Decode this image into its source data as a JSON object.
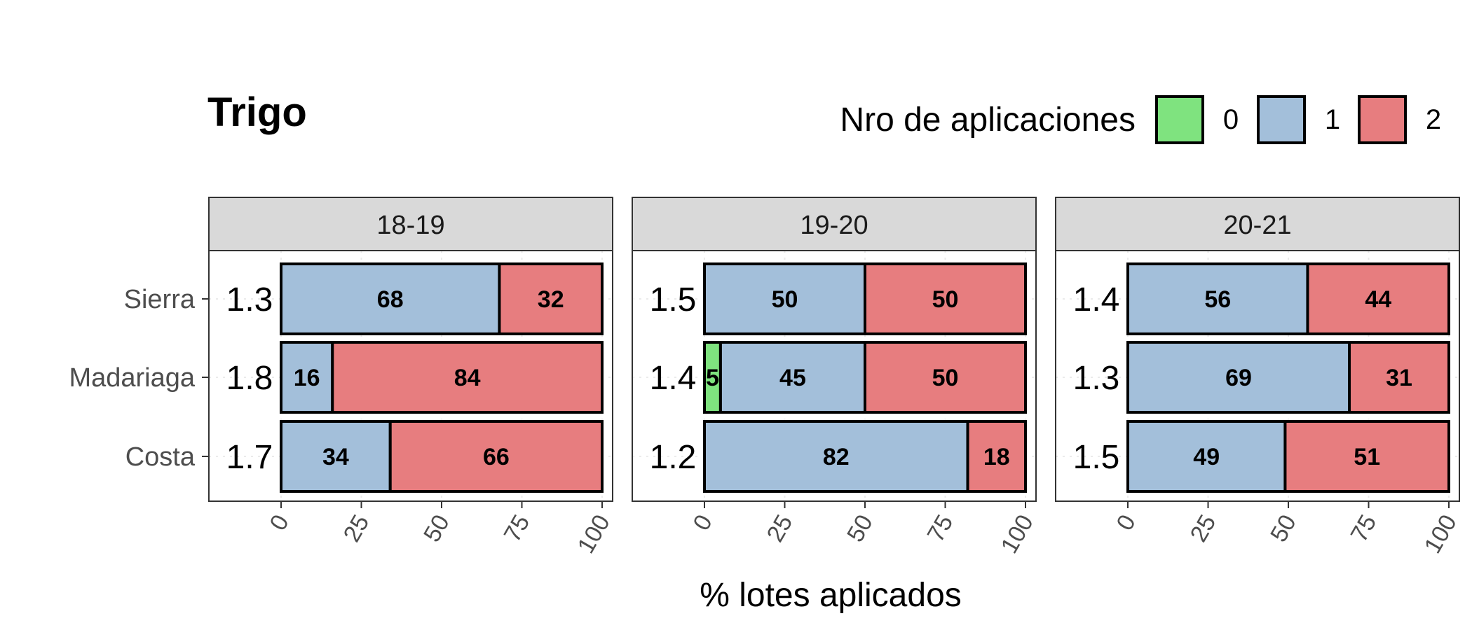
{
  "chart_data": {
    "type": "bar",
    "orientation": "horizontal",
    "stacked": true,
    "title": "Trigo",
    "xlabel": "% lotes aplicados",
    "ylabel": "",
    "xlim": [
      0,
      100
    ],
    "x_ticks": [
      "0",
      "25",
      "50",
      "75",
      "100"
    ],
    "categories": [
      "Sierra",
      "Madariaga",
      "Costa"
    ],
    "legend": {
      "title": "Nro de aplicaciones",
      "position": "top-right",
      "entries": [
        {
          "label": "0",
          "color": "#7FE37F"
        },
        {
          "label": "1",
          "color": "#A3BFDA"
        },
        {
          "label": "2",
          "color": "#E77D7F"
        }
      ]
    },
    "panels": [
      {
        "label": "18-19",
        "rows": [
          {
            "category": "Sierra",
            "mean": "1.3",
            "values": [
              0,
              68,
              32
            ]
          },
          {
            "category": "Madariaga",
            "mean": "1.8",
            "values": [
              0,
              16,
              84
            ]
          },
          {
            "category": "Costa",
            "mean": "1.7",
            "values": [
              0,
              34,
              66
            ]
          }
        ]
      },
      {
        "label": "19-20",
        "rows": [
          {
            "category": "Sierra",
            "mean": "1.5",
            "values": [
              0,
              50,
              50
            ]
          },
          {
            "category": "Madariaga",
            "mean": "1.4",
            "values": [
              5,
              45,
              50
            ]
          },
          {
            "category": "Costa",
            "mean": "1.2",
            "values": [
              0,
              82,
              18
            ]
          }
        ]
      },
      {
        "label": "20-21",
        "rows": [
          {
            "category": "Sierra",
            "mean": "1.4",
            "values": [
              0,
              56,
              44
            ]
          },
          {
            "category": "Madariaga",
            "mean": "1.3",
            "values": [
              0,
              69,
              31
            ]
          },
          {
            "category": "Costa",
            "mean": "1.5",
            "values": [
              0,
              49,
              51
            ]
          }
        ]
      }
    ],
    "grid": true
  }
}
